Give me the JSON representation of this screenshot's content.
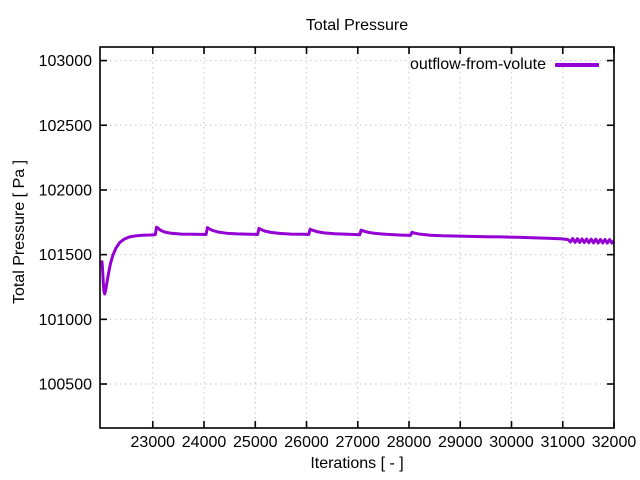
{
  "colors": {
    "background": "#ffffff",
    "axis": "#000000",
    "grid": "#d0d0d0",
    "line": "#9400d3",
    "text": "#000000"
  },
  "chart_data": {
    "type": "line",
    "title": "Total Pressure",
    "xlabel": "Iterations [ - ]",
    "ylabel": "Total Pressure [ Pa ]",
    "xlim": [
      21970,
      32000
    ],
    "ylim": [
      100160,
      103105
    ],
    "xticks": [
      23000,
      24000,
      25000,
      26000,
      27000,
      28000,
      29000,
      30000,
      31000,
      32000
    ],
    "yticks": [
      100500,
      101000,
      101500,
      102000,
      102500,
      103000
    ],
    "grid": true,
    "grid_style": "dotted",
    "legend_position": "top-right-inside",
    "series": [
      {
        "name": "outflow-from-volute",
        "color": "#9400d3",
        "points": [
          [
            22010,
            101445
          ],
          [
            22022,
            101370
          ],
          [
            22034,
            101280
          ],
          [
            22048,
            101215
          ],
          [
            22062,
            101196
          ],
          [
            22080,
            101222
          ],
          [
            22105,
            101282
          ],
          [
            22135,
            101355
          ],
          [
            22175,
            101432
          ],
          [
            22225,
            101500
          ],
          [
            22285,
            101553
          ],
          [
            22355,
            101593
          ],
          [
            22440,
            101619
          ],
          [
            22540,
            101636
          ],
          [
            22660,
            101645
          ],
          [
            22800,
            101650
          ],
          [
            22950,
            101652
          ],
          [
            23050,
            101653
          ],
          [
            23072,
            101712
          ],
          [
            23105,
            101704
          ],
          [
            23150,
            101689
          ],
          [
            23230,
            101675
          ],
          [
            23360,
            101665
          ],
          [
            23560,
            101659
          ],
          [
            23800,
            101657
          ],
          [
            24040,
            101656
          ],
          [
            24065,
            101708
          ],
          [
            24100,
            101700
          ],
          [
            24160,
            101688
          ],
          [
            24270,
            101675
          ],
          [
            24430,
            101666
          ],
          [
            24650,
            101660
          ],
          [
            24900,
            101657
          ],
          [
            25045,
            101656
          ],
          [
            25070,
            101703
          ],
          [
            25110,
            101695
          ],
          [
            25180,
            101683
          ],
          [
            25300,
            101672
          ],
          [
            25470,
            101664
          ],
          [
            25700,
            101659
          ],
          [
            25950,
            101657
          ],
          [
            26045,
            101656
          ],
          [
            26070,
            101697
          ],
          [
            26115,
            101689
          ],
          [
            26200,
            101678
          ],
          [
            26340,
            101668
          ],
          [
            26550,
            101661
          ],
          [
            26800,
            101657
          ],
          [
            27040,
            101654
          ],
          [
            27065,
            101690
          ],
          [
            27110,
            101683
          ],
          [
            27200,
            101673
          ],
          [
            27340,
            101664
          ],
          [
            27550,
            101657
          ],
          [
            27800,
            101652
          ],
          [
            28030,
            101649
          ],
          [
            28058,
            101673
          ],
          [
            28110,
            101666
          ],
          [
            28230,
            101657
          ],
          [
            28420,
            101650
          ],
          [
            28650,
            101646
          ],
          [
            28900,
            101644
          ],
          [
            29200,
            101641
          ],
          [
            29500,
            101639
          ],
          [
            29800,
            101637
          ],
          [
            30100,
            101634
          ],
          [
            30400,
            101631
          ],
          [
            30700,
            101627
          ],
          [
            30950,
            101623
          ],
          [
            31100,
            101617
          ],
          [
            31150,
            101598
          ],
          [
            31195,
            101625
          ],
          [
            31240,
            101595
          ],
          [
            31285,
            101623
          ],
          [
            31330,
            101594
          ],
          [
            31375,
            101622
          ],
          [
            31420,
            101593
          ],
          [
            31465,
            101621
          ],
          [
            31510,
            101592
          ],
          [
            31555,
            101620
          ],
          [
            31600,
            101591
          ],
          [
            31645,
            101619
          ],
          [
            31690,
            101590
          ],
          [
            31735,
            101618
          ],
          [
            31780,
            101590
          ],
          [
            31825,
            101617
          ],
          [
            31870,
            101589
          ],
          [
            31915,
            101616
          ],
          [
            31960,
            101589
          ],
          [
            32000,
            101606
          ]
        ]
      }
    ]
  }
}
